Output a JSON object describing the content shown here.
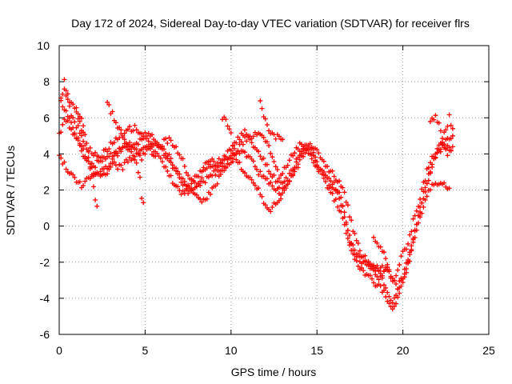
{
  "chart_data": {
    "type": "scatter",
    "title": "Day 172 of 2024, Sidereal Day-to-day VTEC variation (SDTVAR) for receiver flrs",
    "xlabel": "GPS time / hours",
    "ylabel": "SDTVAR / TECUs",
    "xlim": [
      0,
      25
    ],
    "ylim": [
      -6,
      10
    ],
    "xticks": [
      0,
      5,
      10,
      15,
      20,
      25
    ],
    "yticks": [
      -6,
      -4,
      -2,
      0,
      2,
      4,
      6,
      8,
      10
    ],
    "grid": true,
    "marker": "+",
    "color": "#ff0000",
    "series": [
      {
        "points": [
          [
            0.0,
            5.0
          ],
          [
            0.3,
            6.0
          ],
          [
            0.6,
            5.5
          ],
          [
            1.0,
            4.8
          ],
          [
            1.3,
            4.3
          ],
          [
            1.6,
            3.8
          ],
          [
            2.0,
            3.3
          ],
          [
            2.4,
            3.8
          ],
          [
            2.8,
            4.3
          ],
          [
            3.2,
            4.7
          ],
          [
            3.6,
            5.0
          ],
          [
            4.0,
            5.3
          ],
          [
            4.4,
            5.5
          ],
          [
            4.8,
            5.0
          ],
          [
            5.2,
            4.6
          ],
          [
            5.6,
            4.2
          ],
          [
            6.0,
            4.6
          ],
          [
            6.4,
            4.8
          ],
          [
            6.8,
            4.4
          ],
          [
            7.2,
            3.6
          ],
          [
            7.6,
            2.6
          ],
          [
            8.0,
            2.2
          ],
          [
            8.4,
            2.4
          ],
          [
            8.8,
            2.8
          ],
          [
            9.2,
            3.0
          ],
          [
            9.6,
            3.2
          ],
          [
            10.0,
            3.5
          ],
          [
            10.4,
            4.2
          ],
          [
            10.8,
            4.8
          ],
          [
            11.2,
            5.0
          ],
          [
            11.6,
            5.2
          ],
          [
            12.0,
            4.8
          ],
          [
            12.4,
            3.8
          ],
          [
            12.8,
            2.8
          ],
          [
            13.2,
            3.2
          ],
          [
            13.6,
            4.0
          ],
          [
            14.0,
            4.6
          ],
          [
            14.4,
            4.3
          ],
          [
            14.8,
            3.6
          ],
          [
            15.2,
            3.0
          ],
          [
            15.6,
            2.6
          ],
          [
            16.0,
            2.3
          ],
          [
            16.3,
            1.8
          ],
          [
            16.6,
            0.8
          ],
          [
            16.9,
            -0.8
          ],
          [
            17.2,
            -1.5
          ],
          [
            17.6,
            -1.9
          ],
          [
            18.0,
            -2.2
          ],
          [
            18.4,
            -2.4
          ],
          [
            18.8,
            -2.3
          ],
          [
            19.2,
            -2.6
          ],
          [
            19.5,
            -3.0
          ],
          [
            19.8,
            -2.0
          ],
          [
            20.0,
            -1.5
          ],
          [
            20.2,
            -1.2
          ],
          [
            20.4,
            -0.6
          ],
          [
            20.6,
            0.3
          ],
          [
            20.8,
            1.0
          ],
          [
            21.0,
            1.5
          ],
          [
            21.2,
            2.3
          ],
          [
            21.4,
            3.0
          ],
          [
            21.6,
            3.6
          ],
          [
            21.8,
            4.0
          ],
          [
            22.0,
            4.2
          ],
          [
            22.2,
            4.4
          ],
          [
            22.4,
            4.6
          ],
          [
            22.6,
            4.8
          ],
          [
            22.9,
            5.0
          ]
        ]
      },
      {
        "points": [
          [
            0.1,
            6.8
          ],
          [
            0.4,
            6.3
          ],
          [
            0.7,
            5.8
          ],
          [
            1.0,
            5.0
          ],
          [
            1.3,
            4.2
          ],
          [
            1.6,
            3.6
          ],
          [
            2.0,
            3.0
          ],
          [
            2.4,
            2.8
          ],
          [
            2.8,
            3.0
          ],
          [
            3.2,
            3.8
          ],
          [
            3.6,
            4.3
          ],
          [
            4.0,
            4.6
          ],
          [
            4.4,
            4.3
          ],
          [
            4.8,
            3.8
          ],
          [
            5.2,
            4.2
          ],
          [
            5.6,
            4.0
          ],
          [
            6.0,
            3.5
          ],
          [
            6.4,
            2.8
          ],
          [
            6.8,
            2.2
          ],
          [
            7.2,
            1.8
          ],
          [
            7.6,
            2.3
          ],
          [
            8.0,
            2.8
          ],
          [
            8.4,
            3.3
          ],
          [
            8.8,
            3.6
          ],
          [
            9.2,
            3.5
          ],
          [
            9.6,
            3.8
          ],
          [
            10.0,
            4.3
          ],
          [
            10.4,
            4.8
          ],
          [
            10.8,
            5.2
          ],
          [
            11.2,
            4.6
          ],
          [
            11.6,
            4.0
          ],
          [
            12.0,
            3.5
          ],
          [
            12.4,
            2.8
          ],
          [
            12.8,
            2.3
          ],
          [
            13.2,
            2.5
          ],
          [
            13.6,
            3.2
          ],
          [
            14.0,
            4.0
          ],
          [
            14.4,
            4.5
          ],
          [
            14.8,
            4.0
          ],
          [
            15.2,
            3.2
          ],
          [
            15.6,
            2.5
          ],
          [
            16.0,
            2.0
          ],
          [
            16.3,
            1.6
          ],
          [
            16.6,
            0.6
          ],
          [
            16.9,
            -0.6
          ],
          [
            17.2,
            -1.3
          ],
          [
            17.6,
            -1.8
          ],
          [
            18.0,
            -2.1
          ],
          [
            18.4,
            -2.6
          ],
          [
            18.8,
            -3.0
          ],
          [
            19.1,
            -3.8
          ],
          [
            19.4,
            -4.2
          ],
          [
            19.7,
            -3.6
          ],
          [
            20.0,
            -2.8
          ],
          [
            20.3,
            -1.8
          ],
          [
            20.6,
            -0.6
          ],
          [
            20.9,
            0.6
          ],
          [
            21.2,
            1.6
          ],
          [
            21.5,
            2.6
          ],
          [
            21.8,
            3.6
          ],
          [
            22.0,
            4.2
          ],
          [
            22.2,
            4.6
          ],
          [
            22.5,
            4.4
          ],
          [
            22.8,
            4.2
          ]
        ]
      },
      {
        "points": [
          [
            0.0,
            3.8
          ],
          [
            0.3,
            3.4
          ],
          [
            0.6,
            3.0
          ],
          [
            1.0,
            2.6
          ],
          [
            1.3,
            2.3
          ],
          [
            1.6,
            2.5
          ],
          [
            2.0,
            2.8
          ],
          [
            2.4,
            3.0
          ],
          [
            2.8,
            3.2
          ],
          [
            3.2,
            3.4
          ],
          [
            3.6,
            3.2
          ],
          [
            4.0,
            3.6
          ],
          [
            4.4,
            4.0
          ],
          [
            4.8,
            4.2
          ],
          [
            5.2,
            4.4
          ],
          [
            5.6,
            4.6
          ],
          [
            6.0,
            4.3
          ],
          [
            6.4,
            3.8
          ],
          [
            6.8,
            3.2
          ],
          [
            7.2,
            2.6
          ],
          [
            7.6,
            2.2
          ],
          [
            8.0,
            1.6
          ],
          [
            8.4,
            1.4
          ],
          [
            8.8,
            1.8
          ],
          [
            9.2,
            2.4
          ],
          [
            9.6,
            3.2
          ],
          [
            10.0,
            3.8
          ],
          [
            10.4,
            4.2
          ],
          [
            10.8,
            4.0
          ],
          [
            11.2,
            3.6
          ],
          [
            11.6,
            3.0
          ],
          [
            12.0,
            2.6
          ],
          [
            12.4,
            2.2
          ],
          [
            12.8,
            1.8
          ],
          [
            13.2,
            2.2
          ],
          [
            13.6,
            2.8
          ],
          [
            14.0,
            3.6
          ],
          [
            14.4,
            4.2
          ],
          [
            14.8,
            3.8
          ],
          [
            15.2,
            3.0
          ],
          [
            15.6,
            2.2
          ],
          [
            16.0,
            1.5
          ],
          [
            16.3,
            1.0
          ],
          [
            16.6,
            0.0
          ],
          [
            16.9,
            -1.2
          ],
          [
            17.2,
            -1.9
          ],
          [
            17.6,
            -2.4
          ],
          [
            18.0,
            -2.8
          ],
          [
            18.4,
            -3.2
          ],
          [
            18.8,
            -3.5
          ],
          [
            19.1,
            -4.2
          ],
          [
            19.4,
            -4.5
          ],
          [
            19.7,
            -4.0
          ],
          [
            20.0,
            -3.2
          ],
          [
            20.3,
            -2.2
          ],
          [
            20.6,
            -1.0
          ],
          [
            20.9,
            0.2
          ],
          [
            21.2,
            1.2
          ],
          [
            21.5,
            2.0
          ],
          [
            21.8,
            2.4
          ],
          [
            22.1,
            2.4
          ],
          [
            22.4,
            2.3
          ],
          [
            22.7,
            2.1
          ]
        ]
      },
      {
        "points": [
          [
            0.1,
            7.2
          ],
          [
            0.3,
            7.6
          ],
          [
            0.5,
            7.0
          ],
          [
            0.7,
            6.2
          ],
          [
            1.0,
            5.6
          ],
          [
            1.3,
            5.0
          ],
          [
            1.6,
            4.4
          ],
          [
            2.0,
            4.0
          ],
          [
            2.4,
            3.6
          ],
          [
            2.8,
            3.8
          ],
          [
            3.2,
            4.0
          ],
          [
            3.6,
            4.4
          ],
          [
            4.0,
            4.2
          ],
          [
            4.4,
            4.5
          ],
          [
            4.8,
            4.8
          ],
          [
            5.2,
            5.2
          ],
          [
            5.6,
            4.8
          ],
          [
            6.0,
            4.2
          ],
          [
            6.4,
            3.6
          ],
          [
            6.8,
            3.0
          ],
          [
            7.2,
            2.4
          ],
          [
            7.6,
            1.8
          ],
          [
            8.0,
            2.2
          ],
          [
            8.4,
            3.0
          ],
          [
            8.8,
            3.4
          ],
          [
            9.2,
            3.2
          ],
          [
            9.6,
            3.6
          ],
          [
            10.0,
            4.0
          ],
          [
            10.4,
            3.6
          ],
          [
            10.8,
            3.0
          ],
          [
            11.2,
            2.6
          ],
          [
            11.6,
            2.0
          ],
          [
            12.0,
            1.2
          ],
          [
            12.3,
            0.9
          ],
          [
            12.6,
            1.3
          ],
          [
            13.0,
            1.8
          ],
          [
            13.4,
            2.6
          ],
          [
            13.8,
            3.4
          ],
          [
            14.2,
            4.2
          ],
          [
            14.6,
            4.6
          ],
          [
            15.0,
            4.2
          ],
          [
            15.4,
            3.6
          ],
          [
            15.8,
            3.0
          ],
          [
            16.2,
            2.6
          ],
          [
            16.6,
            1.8
          ],
          [
            17.0,
            0.2
          ],
          [
            17.3,
            -0.8
          ],
          [
            17.6,
            -1.6
          ],
          [
            18.0,
            -2.0
          ],
          [
            18.4,
            -2.4
          ],
          [
            18.8,
            -2.8
          ],
          [
            19.1,
            -2.4
          ],
          [
            19.4,
            -3.0
          ],
          [
            19.7,
            -3.4
          ],
          [
            20.0,
            -2.8
          ],
          [
            20.3,
            -2.0
          ],
          [
            20.6,
            -0.8
          ],
          [
            20.9,
            0.6
          ],
          [
            21.2,
            1.8
          ],
          [
            21.5,
            2.8
          ],
          [
            21.8,
            3.6
          ],
          [
            22.0,
            4.0
          ],
          [
            22.3,
            4.4
          ],
          [
            22.6,
            4.0
          ],
          [
            22.9,
            4.4
          ]
        ]
      },
      {
        "points": [
          [
            1.0,
            6.4
          ],
          [
            1.2,
            6.2
          ],
          [
            1.4,
            5.6
          ],
          [
            1.6,
            4.6
          ],
          [
            1.8,
            3.4
          ],
          [
            2.0,
            2.2
          ],
          [
            2.1,
            1.4
          ],
          [
            2.2,
            1.1
          ]
        ]
      },
      {
        "points": [
          [
            2.8,
            7.0
          ],
          [
            3.0,
            6.4
          ],
          [
            3.3,
            5.8
          ],
          [
            3.6,
            5.2
          ],
          [
            3.9,
            4.6
          ],
          [
            4.2,
            4.2
          ],
          [
            4.5,
            3.4
          ],
          [
            4.7,
            2.6
          ],
          [
            4.8,
            1.6
          ],
          [
            4.9,
            1.3
          ]
        ]
      },
      {
        "points": [
          [
            9.5,
            5.8
          ],
          [
            9.7,
            6.0
          ],
          [
            9.9,
            5.4
          ],
          [
            10.1,
            4.6
          ],
          [
            10.3,
            4.0
          ]
        ]
      },
      {
        "points": [
          [
            11.7,
            7.0
          ],
          [
            11.9,
            6.0
          ],
          [
            12.2,
            5.4
          ],
          [
            12.6,
            5.0
          ],
          [
            13.0,
            4.8
          ]
        ]
      },
      {
        "points": [
          [
            18.3,
            -0.6
          ],
          [
            18.5,
            -0.8
          ],
          [
            18.7,
            -1.2
          ],
          [
            18.9,
            -1.6
          ],
          [
            19.1,
            -2.2
          ],
          [
            19.3,
            -2.8
          ]
        ]
      },
      {
        "points": [
          [
            21.6,
            5.8
          ],
          [
            21.9,
            6.2
          ],
          [
            22.1,
            5.6
          ],
          [
            22.3,
            5.0
          ],
          [
            22.5,
            5.4
          ],
          [
            22.7,
            6.0
          ],
          [
            22.9,
            5.4
          ]
        ]
      },
      {
        "points": [
          [
            0.3,
            8.0
          ],
          [
            0.5,
            7.2
          ],
          [
            0.8,
            6.6
          ],
          [
            1.1,
            6.0
          ],
          [
            1.4,
            5.2
          ]
        ]
      }
    ]
  }
}
